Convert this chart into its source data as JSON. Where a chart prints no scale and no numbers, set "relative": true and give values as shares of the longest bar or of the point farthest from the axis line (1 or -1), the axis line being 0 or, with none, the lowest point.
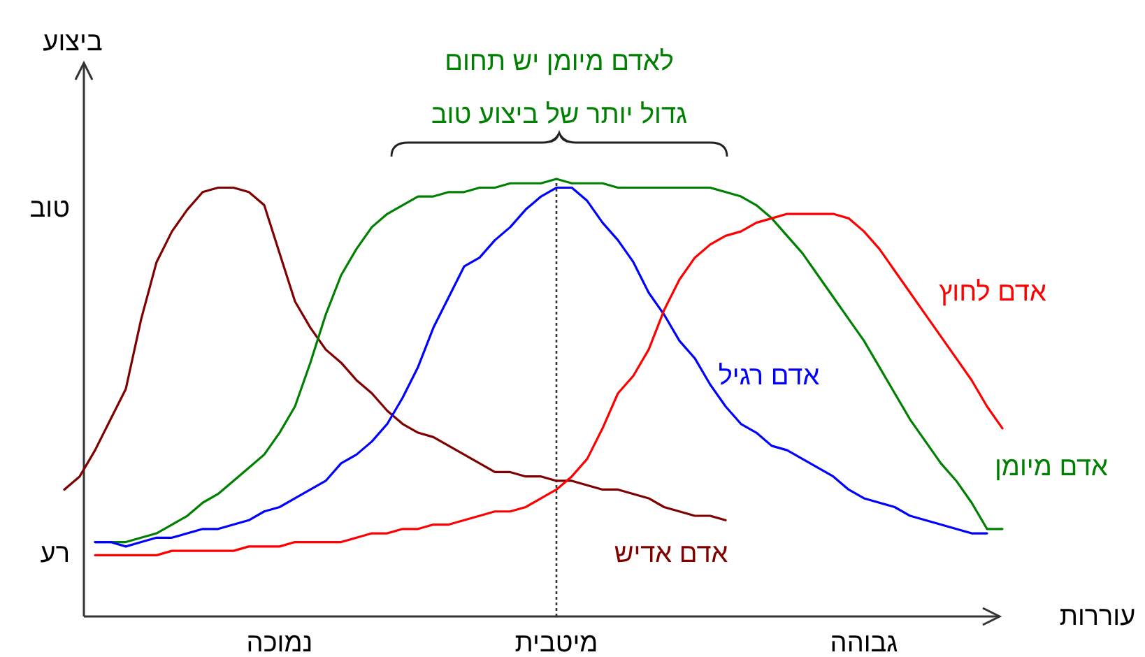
{
  "chart_data": {
    "type": "line",
    "relative": true,
    "xlabel": "עוררות",
    "ylabel": "ביצוע",
    "categories": [
      null,
      null,
      null,
      null,
      null,
      null,
      null,
      null,
      null,
      null,
      null,
      null,
      null,
      null,
      null,
      "נמוכה",
      null,
      null,
      null,
      null,
      null,
      null,
      null,
      null,
      null,
      null,
      null,
      null,
      null,
      null,
      null,
      null,
      null,
      "מיטבית",
      null,
      null,
      null,
      null,
      null,
      null,
      null,
      null,
      null,
      null,
      null,
      null,
      null,
      null,
      null,
      null,
      null,
      null,
      null,
      "גבוהה",
      null,
      null,
      null,
      null,
      null,
      null,
      null,
      null,
      null
    ],
    "series": [
      {
        "name": "אדם אדיש",
        "color": "#800000",
        "values": [
          null,
          0.29,
          0.32,
          0.38,
          0.45,
          0.52,
          0.68,
          0.81,
          0.88,
          0.93,
          0.97,
          0.98,
          0.98,
          0.97,
          0.94,
          0.83,
          0.72,
          0.66,
          0.61,
          0.58,
          0.54,
          0.51,
          0.47,
          0.44,
          0.42,
          0.41,
          0.39,
          0.37,
          0.35,
          0.33,
          0.33,
          0.32,
          0.32,
          0.31,
          0.31,
          0.3,
          0.29,
          0.29,
          0.28,
          0.27,
          0.25,
          0.24,
          0.23,
          0.23,
          0.22,
          null,
          null,
          null,
          null,
          null,
          null,
          null,
          null,
          null,
          null,
          null,
          null,
          null,
          null,
          null,
          null,
          null,
          null
        ]
      },
      {
        "name": "אדם מיומן",
        "color": "#008000",
        "values": [
          null,
          null,
          null,
          0.17,
          0.17,
          0.17,
          0.18,
          0.19,
          0.21,
          0.23,
          0.26,
          0.28,
          0.31,
          0.34,
          0.37,
          0.42,
          0.48,
          0.58,
          0.69,
          0.78,
          0.84,
          0.89,
          0.92,
          0.94,
          0.96,
          0.96,
          0.97,
          0.97,
          0.98,
          0.98,
          0.99,
          0.99,
          0.99,
          1,
          0.99,
          0.99,
          0.99,
          0.98,
          0.98,
          0.98,
          0.98,
          0.98,
          0.98,
          0.98,
          0.97,
          0.96,
          0.94,
          0.91,
          0.87,
          0.83,
          0.78,
          0.73,
          0.68,
          0.63,
          0.57,
          0.51,
          0.45,
          0.4,
          0.35,
          0.31,
          0.26,
          0.2,
          0.2
        ]
      },
      {
        "name": "אדם רגיל",
        "color": "#0000ff",
        "values": [
          null,
          null,
          null,
          0.17,
          0.17,
          0.16,
          0.17,
          0.18,
          0.18,
          0.19,
          0.2,
          0.2,
          0.21,
          0.22,
          0.24,
          0.25,
          0.27,
          0.29,
          0.31,
          0.35,
          0.37,
          0.4,
          0.44,
          0.5,
          0.57,
          0.66,
          0.73,
          0.8,
          0.82,
          0.86,
          0.89,
          0.93,
          0.96,
          0.98,
          0.98,
          0.95,
          0.9,
          0.86,
          0.81,
          0.74,
          0.69,
          0.63,
          0.59,
          0.53,
          0.48,
          0.44,
          0.42,
          0.39,
          0.38,
          0.36,
          0.34,
          0.32,
          0.29,
          0.27,
          0.26,
          0.25,
          0.23,
          0.22,
          0.21,
          0.2,
          0.19,
          0.19,
          null
        ]
      },
      {
        "name": "אדם לחוץ",
        "color": "#ff0000",
        "values": [
          null,
          null,
          null,
          0.14,
          0.14,
          0.14,
          0.14,
          0.14,
          0.15,
          0.15,
          0.15,
          0.15,
          0.15,
          0.16,
          0.16,
          0.16,
          0.17,
          0.17,
          0.17,
          0.17,
          0.18,
          0.19,
          0.19,
          0.2,
          0.2,
          0.21,
          0.21,
          0.22,
          0.23,
          0.24,
          0.24,
          0.25,
          0.27,
          0.29,
          0.32,
          0.36,
          0.43,
          0.51,
          0.55,
          0.61,
          0.7,
          0.77,
          0.82,
          0.85,
          0.87,
          0.88,
          0.9,
          0.91,
          0.92,
          0.92,
          0.92,
          0.92,
          0.91,
          0.88,
          0.84,
          0.79,
          0.74,
          0.69,
          0.64,
          0.59,
          0.54,
          0.48,
          0.43
        ]
      }
    ],
    "ref_lines": [
      {
        "axis": "x",
        "value": "מיטבית",
        "line_style": "dotted"
      }
    ],
    "annotations": [
      "לאדם מיומן יש תחום",
      "גדול יותר של ביצוע טוב",
      "טוב",
      "רע"
    ]
  }
}
